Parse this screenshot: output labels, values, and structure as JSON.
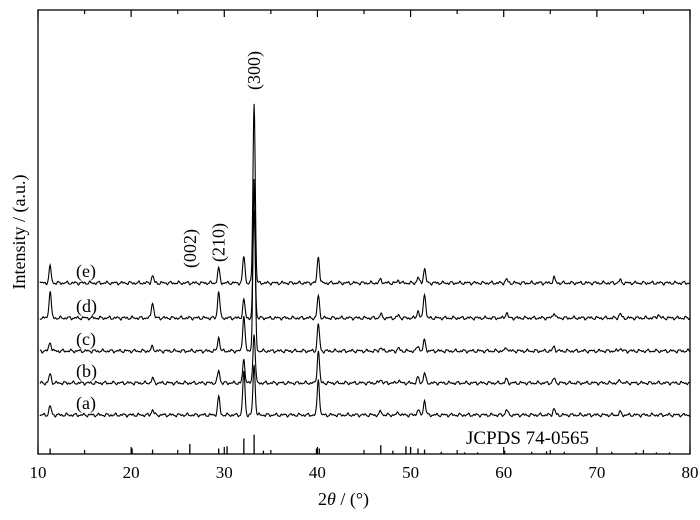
{
  "chart_data": {
    "type": "line",
    "xlabel_prefix": "2",
    "xlabel_var": "θ",
    "xlabel_suffix": " / (°)",
    "ylabel": "Intensity / (a.u.)",
    "xlim": [
      10,
      80
    ],
    "xticks": [
      "10",
      "20",
      "30",
      "40",
      "50",
      "60",
      "70",
      "80"
    ],
    "xtick_values": [
      10,
      20,
      30,
      40,
      50,
      60,
      70,
      80
    ],
    "y_ticks_shown": false,
    "grid": false,
    "legend": "none",
    "series": [
      {
        "name": "(a)",
        "baseline": 1.0,
        "peaks": [
          [
            11.3,
            10
          ],
          [
            22.3,
            6
          ],
          [
            29.4,
            20
          ],
          [
            32.1,
            48
          ],
          [
            33.2,
            55
          ],
          [
            40.1,
            40
          ],
          [
            46.8,
            4
          ],
          [
            48.7,
            3
          ],
          [
            50.8,
            6
          ],
          [
            51.5,
            16
          ],
          [
            60.3,
            6
          ],
          [
            65.4,
            7
          ],
          [
            72.5,
            3
          ]
        ]
      },
      {
        "name": "(b)",
        "baseline": 2.0,
        "peaks": [
          [
            11.3,
            10
          ],
          [
            22.3,
            5
          ],
          [
            29.4,
            14
          ],
          [
            32.1,
            26
          ],
          [
            33.2,
            55
          ],
          [
            40.1,
            36
          ],
          [
            46.8,
            4
          ],
          [
            48.7,
            3
          ],
          [
            50.8,
            6
          ],
          [
            51.5,
            11
          ],
          [
            60.3,
            4
          ],
          [
            65.4,
            5
          ],
          [
            72.5,
            3
          ]
        ]
      },
      {
        "name": "(c)",
        "baseline": 3.0,
        "peaks": [
          [
            11.3,
            10
          ],
          [
            22.3,
            5
          ],
          [
            29.4,
            15
          ],
          [
            32.1,
            40
          ],
          [
            33.2,
            190
          ],
          [
            40.1,
            30
          ],
          [
            46.8,
            4
          ],
          [
            48.7,
            3
          ],
          [
            50.8,
            6
          ],
          [
            51.5,
            12
          ],
          [
            60.3,
            4
          ],
          [
            65.4,
            5
          ],
          [
            72.5,
            3
          ]
        ]
      },
      {
        "name": "(d)",
        "baseline": 4.0,
        "peaks": [
          [
            11.3,
            30
          ],
          [
            22.3,
            18
          ],
          [
            29.4,
            30
          ],
          [
            32.1,
            20
          ],
          [
            33.2,
            120
          ],
          [
            40.1,
            25
          ],
          [
            46.8,
            4
          ],
          [
            48.7,
            3
          ],
          [
            50.8,
            8
          ],
          [
            51.5,
            28
          ],
          [
            60.3,
            6
          ],
          [
            65.4,
            6
          ],
          [
            72.5,
            5
          ],
          [
            76.6,
            4
          ]
        ]
      },
      {
        "name": "(e)",
        "baseline": 5.0,
        "peaks": [
          [
            11.3,
            18
          ],
          [
            22.3,
            8
          ],
          [
            29.4,
            16
          ],
          [
            32.1,
            30
          ],
          [
            33.2,
            200
          ],
          [
            40.1,
            30
          ],
          [
            46.8,
            4
          ],
          [
            48.7,
            3
          ],
          [
            50.8,
            6
          ],
          [
            51.5,
            16
          ],
          [
            60.3,
            4
          ],
          [
            65.4,
            6
          ],
          [
            72.5,
            3
          ]
        ]
      }
    ],
    "annotations": [
      {
        "text": "(002)",
        "x": 26.3
      },
      {
        "text": "(210)",
        "x": 29.4
      },
      {
        "text": "(300)",
        "x": 33.2
      }
    ],
    "reference": {
      "name": "JCPDS 74-0565",
      "lines": [
        [
          11.3,
          10
        ],
        [
          20.1,
          10
        ],
        [
          22.3,
          8
        ],
        [
          26.3,
          18
        ],
        [
          29.4,
          10
        ],
        [
          30.3,
          14
        ],
        [
          32.1,
          28
        ],
        [
          33.2,
          35
        ],
        [
          34.2,
          6
        ],
        [
          39.9,
          10
        ],
        [
          40.2,
          10
        ],
        [
          46.8,
          16
        ],
        [
          48.1,
          6
        ],
        [
          49.5,
          14
        ],
        [
          50.0,
          12
        ],
        [
          50.8,
          10
        ],
        [
          51.5,
          8
        ],
        [
          53.3,
          4
        ],
        [
          55.8,
          3
        ],
        [
          57.2,
          3
        ],
        [
          60.1,
          6
        ],
        [
          63.0,
          4
        ],
        [
          64.6,
          5
        ],
        [
          66.5,
          4
        ],
        [
          71.6,
          4
        ],
        [
          74.2,
          3
        ],
        [
          76.4,
          3
        ],
        [
          77.8,
          3
        ]
      ]
    }
  }
}
